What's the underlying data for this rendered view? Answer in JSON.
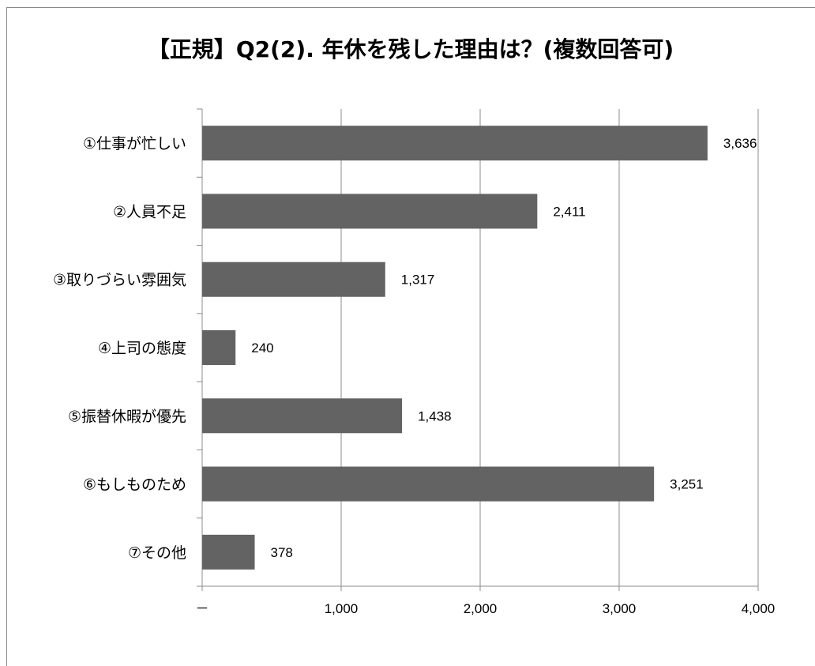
{
  "chart_data": {
    "type": "bar",
    "orientation": "horizontal",
    "title": "【正規】Q2(2). 年休を残した理由は？(複数回答可)",
    "categories": [
      "①仕事が忙しい",
      "②人員不足",
      "③取りづらい雰囲気",
      "④上司の態度",
      "⑤振替休暇が優先",
      "⑥もしものため",
      "⑦その他"
    ],
    "values": [
      3636,
      2411,
      1317,
      240,
      1438,
      3251,
      378
    ],
    "value_labels": [
      "3,636",
      "2,411",
      "1,317",
      "240",
      "1,438",
      "3,251",
      "378"
    ],
    "xlim": [
      0,
      4000
    ],
    "x_ticks": [
      0,
      1000,
      2000,
      3000,
      4000
    ],
    "x_tick_labels": [
      "－",
      "1,000",
      "2,000",
      "3,000",
      "4,000"
    ],
    "grid": "vertical",
    "legend": "none",
    "bar_color": "#636363"
  }
}
